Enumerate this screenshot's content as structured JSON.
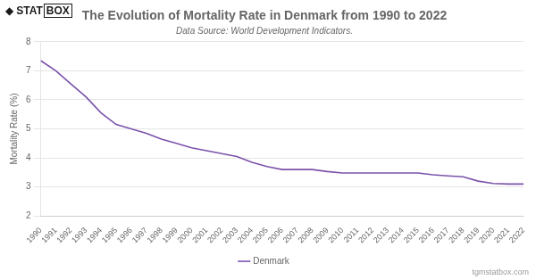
{
  "chart_data": {
    "type": "line",
    "title": "The Evolution of Mortality Rate in Denmark from 1990 to 2022",
    "subtitle": "Data Source: World Development Indicators.",
    "y_label": "Mortality Rate (%)",
    "x": [
      1990,
      1991,
      1992,
      1993,
      1994,
      1995,
      1996,
      1997,
      1998,
      1999,
      2000,
      2001,
      2002,
      2003,
      2004,
      2005,
      2006,
      2007,
      2008,
      2009,
      2010,
      2011,
      2012,
      2013,
      2014,
      2015,
      2016,
      2017,
      2018,
      2019,
      2020,
      2021,
      2022
    ],
    "xlim": [
      1990,
      2022
    ],
    "xticks": [
      1990,
      1991,
      1992,
      1993,
      1994,
      1995,
      1996,
      1997,
      1998,
      1999,
      2000,
      2001,
      2002,
      2003,
      2004,
      2005,
      2006,
      2007,
      2008,
      2009,
      2010,
      2011,
      2012,
      2013,
      2014,
      2015,
      2016,
      2017,
      2018,
      2019,
      2020,
      2021,
      2022
    ],
    "series": [
      {
        "name": "Denmark",
        "color": "#7B52AB",
        "values": [
          7.35,
          7.0,
          6.55,
          6.1,
          5.55,
          5.15,
          5.0,
          4.85,
          4.65,
          4.5,
          4.35,
          4.25,
          4.15,
          4.05,
          3.85,
          3.7,
          3.6,
          3.6,
          3.6,
          3.53,
          3.48,
          3.48,
          3.48,
          3.48,
          3.48,
          3.48,
          3.42,
          3.38,
          3.35,
          3.2,
          3.12,
          3.1,
          3.1
        ]
      }
    ],
    "ylim": [
      2,
      8
    ],
    "yticks": [
      2,
      3,
      4,
      5,
      6,
      7,
      8
    ],
    "grid": "y",
    "legend": "bottom",
    "annotations": [
      "◆",
      "STAT",
      "BOX",
      "tgmstatbox.com"
    ]
  }
}
